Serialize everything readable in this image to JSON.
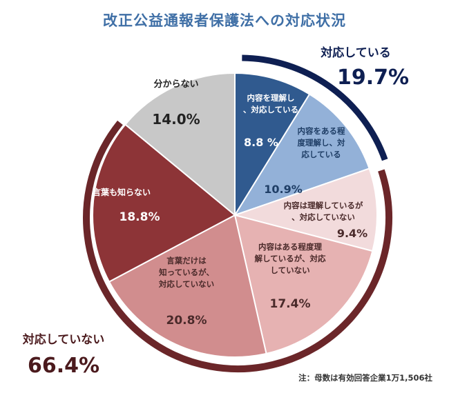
{
  "title": "改正公益通報者保護法への対応状況",
  "note": "注：母数は有効回答企業1万1,506社",
  "chart_data": {
    "type": "pie",
    "title": "改正公益通報者保護法への対応状況",
    "slices": [
      {
        "label": "内容を理解し、対応している",
        "value": 8.8,
        "value_label": "8.8 %",
        "color": "#305a8f",
        "text_color": "#ffffff"
      },
      {
        "label": "内容をある程度理解し、対応している",
        "value": 10.9,
        "value_label": "10.9%",
        "color": "#93b1d8",
        "text_color": "#1f3e66"
      },
      {
        "label": "内容は理解しているが、対応していない",
        "value": 9.4,
        "value_label": "9.4%",
        "color": "#f2dbdc",
        "text_color": "#4a2a2a"
      },
      {
        "label": "内容はある程度理解しているが、対応していない",
        "value": 17.4,
        "value_label": "17.4%",
        "color": "#e6b2b2",
        "text_color": "#4a2a2a"
      },
      {
        "label": "言葉だけは知っているが、対応していない",
        "value": 20.8,
        "value_label": "20.8%",
        "color": "#d18d8e",
        "text_color": "#4a2a2a"
      },
      {
        "label": "言葉も知らない",
        "value": 18.8,
        "value_label": "18.8%",
        "color": "#8d3437",
        "text_color": "#ffffff"
      },
      {
        "label": "分からない",
        "value": 14.0,
        "value_label": "14.0%",
        "color": "#c8c8c8",
        "text_color": "#222222"
      }
    ],
    "groups": [
      {
        "label": "対応している",
        "value_label": "19.7%",
        "value": 19.7,
        "color": "#0e1f52"
      },
      {
        "label": "対応していない",
        "value_label": "66.4%",
        "value": 66.4,
        "color": "#6b2629"
      }
    ]
  }
}
